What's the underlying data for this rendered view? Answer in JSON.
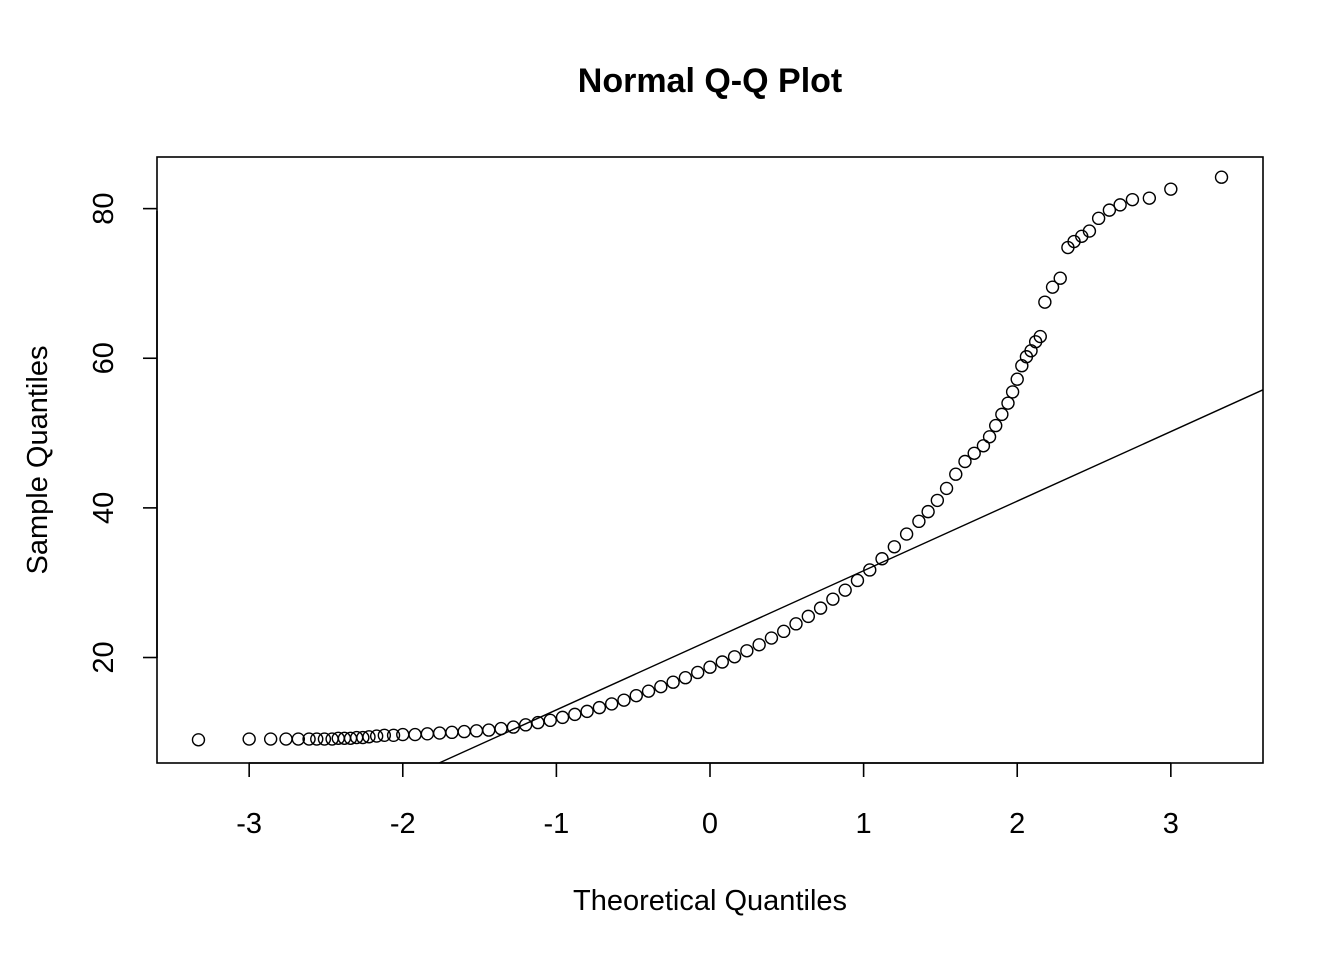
{
  "chart_data": {
    "type": "scatter",
    "title": "Normal Q-Q Plot",
    "xlabel": "Theoretical Quantiles",
    "ylabel": "Sample Quantiles",
    "xlim": [
      -3.6,
      3.6
    ],
    "ylim": [
      5.9,
      86.9
    ],
    "x_ticks": [
      -3,
      -2,
      -1,
      0,
      1,
      2,
      3
    ],
    "x_tick_labels": [
      "-3",
      "-2",
      "-1",
      "0",
      "1",
      "2",
      "3"
    ],
    "y_ticks": [
      20,
      40,
      60,
      80
    ],
    "y_tick_labels": [
      "20",
      "40",
      "60",
      "80"
    ],
    "grid": false,
    "marker": "open-circle",
    "reference_line": {
      "intercept": 22.3,
      "slope": 9.3
    },
    "points": [
      [
        -3.33,
        9.0
      ],
      [
        -3.0,
        9.1
      ],
      [
        -2.86,
        9.1
      ],
      [
        -2.76,
        9.1
      ],
      [
        -2.68,
        9.1
      ],
      [
        -2.61,
        9.1
      ],
      [
        -2.56,
        9.1
      ],
      [
        -2.51,
        9.1
      ],
      [
        -2.46,
        9.1
      ],
      [
        -2.42,
        9.2
      ],
      [
        -2.38,
        9.2
      ],
      [
        -2.34,
        9.2
      ],
      [
        -2.3,
        9.3
      ],
      [
        -2.26,
        9.3
      ],
      [
        -2.22,
        9.4
      ],
      [
        -2.17,
        9.5
      ],
      [
        -2.12,
        9.6
      ],
      [
        -2.06,
        9.6
      ],
      [
        -2.0,
        9.7
      ],
      [
        -1.92,
        9.7
      ],
      [
        -1.84,
        9.8
      ],
      [
        -1.76,
        9.9
      ],
      [
        -1.68,
        10.0
      ],
      [
        -1.6,
        10.1
      ],
      [
        -1.52,
        10.2
      ],
      [
        -1.44,
        10.3
      ],
      [
        -1.36,
        10.5
      ],
      [
        -1.28,
        10.7
      ],
      [
        -1.2,
        11.0
      ],
      [
        -1.12,
        11.3
      ],
      [
        -1.04,
        11.6
      ],
      [
        -0.96,
        12.0
      ],
      [
        -0.88,
        12.4
      ],
      [
        -0.8,
        12.8
      ],
      [
        -0.72,
        13.3
      ],
      [
        -0.64,
        13.8
      ],
      [
        -0.56,
        14.3
      ],
      [
        -0.48,
        14.9
      ],
      [
        -0.4,
        15.5
      ],
      [
        -0.32,
        16.1
      ],
      [
        -0.24,
        16.7
      ],
      [
        -0.16,
        17.3
      ],
      [
        -0.08,
        18.0
      ],
      [
        0.0,
        18.7
      ],
      [
        0.08,
        19.4
      ],
      [
        0.16,
        20.1
      ],
      [
        0.24,
        20.9
      ],
      [
        0.32,
        21.7
      ],
      [
        0.4,
        22.6
      ],
      [
        0.48,
        23.5
      ],
      [
        0.56,
        24.5
      ],
      [
        0.64,
        25.5
      ],
      [
        0.72,
        26.6
      ],
      [
        0.8,
        27.8
      ],
      [
        0.88,
        29.0
      ],
      [
        0.96,
        30.3
      ],
      [
        1.04,
        31.7
      ],
      [
        1.12,
        33.2
      ],
      [
        1.2,
        34.8
      ],
      [
        1.28,
        36.5
      ],
      [
        1.36,
        38.2
      ],
      [
        1.42,
        39.5
      ],
      [
        1.48,
        41.0
      ],
      [
        1.54,
        42.6
      ],
      [
        1.6,
        44.5
      ],
      [
        1.66,
        46.2
      ],
      [
        1.72,
        47.3
      ],
      [
        1.78,
        48.3
      ],
      [
        1.82,
        49.5
      ],
      [
        1.86,
        51.0
      ],
      [
        1.9,
        52.5
      ],
      [
        1.94,
        54.0
      ],
      [
        1.97,
        55.5
      ],
      [
        2.0,
        57.2
      ],
      [
        2.03,
        59.0
      ],
      [
        2.06,
        60.2
      ],
      [
        2.09,
        61.0
      ],
      [
        2.12,
        62.2
      ],
      [
        2.15,
        62.9
      ],
      [
        2.18,
        67.5
      ],
      [
        2.23,
        69.5
      ],
      [
        2.28,
        70.7
      ],
      [
        2.33,
        74.8
      ],
      [
        2.37,
        75.6
      ],
      [
        2.42,
        76.3
      ],
      [
        2.47,
        77.0
      ],
      [
        2.53,
        78.7
      ],
      [
        2.6,
        79.8
      ],
      [
        2.67,
        80.5
      ],
      [
        2.75,
        81.2
      ],
      [
        2.86,
        81.4
      ],
      [
        3.0,
        82.6
      ],
      [
        3.33,
        84.2
      ]
    ]
  }
}
